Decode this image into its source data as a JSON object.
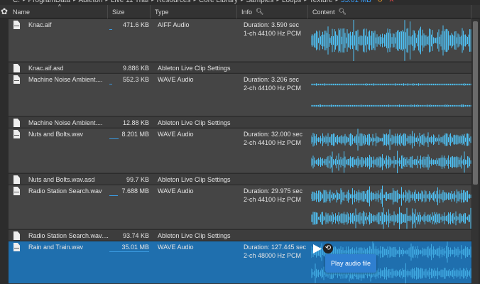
{
  "breadcrumb": [
    "C:",
    "ProgramData",
    "Ableton",
    "Live 11 Trial",
    "Resources",
    "Core Library",
    "Samples",
    "Loops",
    "Texture"
  ],
  "total_size": "35.01 MB",
  "columns": {
    "name": "Name",
    "size": "Size",
    "type": "Type",
    "info": "Info",
    "content": "Content"
  },
  "colors": {
    "accent": "#1f6fae",
    "waveform": "#4fc3f7"
  },
  "rows": [
    {
      "name": "Knac.aif",
      "size": "471.6 KB",
      "type": "AIFF Audio",
      "info1": "Duration: 3.590 sec",
      "info2": "1-ch 44100 Hz PCM",
      "channels": 1,
      "size_fraction": 0.013
    },
    {
      "name": "Knac.aif.asd",
      "size": "9.886 KB",
      "type": "Ableton Live Clip Settings"
    },
    {
      "name": "Machine Noise Ambient....",
      "size": "552.3 KB",
      "type": "WAVE Audio",
      "info1": "Duration: 3.206 sec",
      "info2": "2-ch 44100 Hz PCM",
      "channels": 2,
      "size_fraction": 0.016
    },
    {
      "name": "Machine Noise Ambient....",
      "size": "12.88 KB",
      "type": "Ableton Live Clip Settings"
    },
    {
      "name": "Nuts and Bolts.wav",
      "size": "8.201 MB",
      "type": "WAVE Audio",
      "info1": "Duration: 32.000 sec",
      "info2": "2-ch 44100 Hz PCM",
      "channels": 2,
      "size_fraction": 0.23
    },
    {
      "name": "Nuts and Bolts.wav.asd",
      "size": "99.7 KB",
      "type": "Ableton Live Clip Settings"
    },
    {
      "name": "Radio Station Search.wav",
      "size": "7.688 MB",
      "type": "WAVE Audio",
      "info1": "Duration: 29.975 sec",
      "info2": "2-ch 44100 Hz PCM",
      "channels": 2,
      "size_fraction": 0.22
    },
    {
      "name": "Radio Station Search.wav....",
      "size": "93.74 KB",
      "type": "Ableton Live Clip Settings"
    },
    {
      "name": "Rain and Train.wav",
      "size": "35.01 MB",
      "type": "WAVE Audio",
      "info1": "Duration: 127.445 sec",
      "info2": "2-ch 48000 Hz PCM",
      "channels": 2,
      "size_fraction": 1.0,
      "selected": true
    }
  ],
  "tooltip": "Play audio file",
  "icons": {
    "settings": "gear-icon",
    "search": "magnifier-icon",
    "play": "play-icon",
    "loop": "loop-icon",
    "file": "audio-file-icon"
  }
}
